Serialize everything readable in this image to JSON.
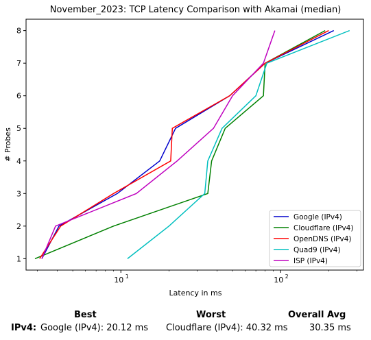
{
  "chart_data": {
    "type": "line",
    "title": "November_2023: TCP Latency Comparison with Akamai (median)",
    "xlabel": "Latency in ms",
    "ylabel": "# Probes",
    "xscale": "log",
    "xlim": [
      2.55,
      330
    ],
    "ylim": [
      0.65,
      8.35
    ],
    "x_tick_labels": [
      "10",
      "10"
    ],
    "x_tick_exponents": [
      "1",
      "2"
    ],
    "y_ticks": [
      1,
      2,
      3,
      4,
      5,
      6,
      7,
      8
    ],
    "legend_position": "lower-right",
    "series": [
      {
        "name": "Google (IPv4)",
        "color": "#0000cc",
        "points": [
          [
            3.2,
            1
          ],
          [
            4.1,
            2
          ],
          [
            9.5,
            3
          ],
          [
            17.5,
            4
          ],
          [
            22,
            5
          ],
          [
            48,
            6
          ],
          [
            80,
            7
          ],
          [
            215,
            8
          ]
        ]
      },
      {
        "name": "Cloudflare (IPv4)",
        "color": "#008000",
        "points": [
          [
            2.9,
            1
          ],
          [
            9,
            2
          ],
          [
            35,
            3
          ],
          [
            37,
            4
          ],
          [
            45,
            5
          ],
          [
            78,
            6
          ],
          [
            80,
            7
          ],
          [
            190,
            8
          ]
        ]
      },
      {
        "name": "OpenDNS (IPv4)",
        "color": "#ff0000",
        "points": [
          [
            3.1,
            1
          ],
          [
            4.2,
            2
          ],
          [
            9,
            3
          ],
          [
            20.5,
            4
          ],
          [
            21,
            5
          ],
          [
            48,
            6
          ],
          [
            80,
            7
          ],
          [
            200,
            8
          ]
        ]
      },
      {
        "name": "Quad9 (IPv4)",
        "color": "#00bfbf",
        "points": [
          [
            11,
            1
          ],
          [
            20,
            2
          ],
          [
            33.5,
            3
          ],
          [
            35,
            4
          ],
          [
            43,
            5
          ],
          [
            70,
            6
          ],
          [
            82,
            7
          ],
          [
            270,
            8
          ]
        ]
      },
      {
        "name": "ISP (IPv4)",
        "color": "#bf00bf",
        "points": [
          [
            3.2,
            1
          ],
          [
            3.9,
            2
          ],
          [
            12.5,
            3
          ],
          [
            22.5,
            4
          ],
          [
            38,
            5
          ],
          [
            50,
            6
          ],
          [
            78,
            7
          ],
          [
            92,
            8
          ]
        ]
      }
    ]
  },
  "summary": {
    "best_header": "Best",
    "worst_header": "Worst",
    "avg_header": "Overall Avg",
    "row_label": "IPv4:",
    "best": "Google (IPv4): 20.12 ms",
    "worst": "Cloudflare (IPv4): 40.32 ms",
    "avg": "30.35 ms"
  }
}
